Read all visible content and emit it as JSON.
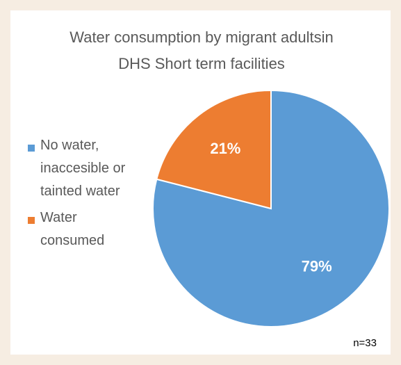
{
  "chart_data": {
    "type": "pie",
    "title": "Water consumption by migrant adultsin DHS Short term facilities",
    "categories": [
      "No water, inaccesible or tainted water",
      "Water consumed"
    ],
    "values": [
      79,
      21
    ],
    "value_labels": [
      "79%",
      "21%"
    ],
    "colors": [
      "#5b9bd5",
      "#ed7d31"
    ],
    "legend": "left",
    "annotation": "n=33"
  }
}
